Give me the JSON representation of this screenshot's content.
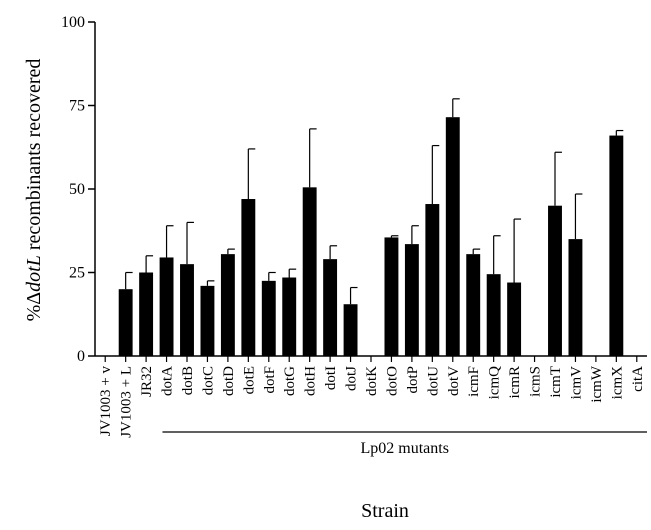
{
  "chart_data": {
    "type": "bar",
    "ylabel_prefix": "%Δ",
    "ylabel_gene": "dotL",
    "ylabel_suffix": " recombinants recovered",
    "xlabel": "Strain",
    "ylim": [
      0,
      100
    ],
    "yticks": [
      0,
      25,
      50,
      75,
      100
    ],
    "categories": [
      "JV1003 + v",
      "JV1003 + L",
      "JR32",
      "dotA",
      "dotB",
      "dotC",
      "dotD",
      "dotE",
      "dotF",
      "dotG",
      "dotH",
      "dotI",
      "dotJ",
      "dotK",
      "dotO",
      "dotP",
      "dotU",
      "dotV",
      "icmF",
      "icmQ",
      "icmR",
      "icmS",
      "icmT",
      "icmV",
      "icmW",
      "icmX",
      "citA"
    ],
    "values": [
      0,
      20,
      25,
      29.5,
      27.5,
      21,
      30.5,
      47,
      22.5,
      23.5,
      50.5,
      29,
      15.5,
      0,
      35.5,
      33.5,
      45.5,
      71.5,
      30.5,
      24.5,
      22,
      0,
      45,
      35,
      0,
      66,
      0
    ],
    "errors": [
      0,
      5,
      5,
      9.5,
      12.5,
      1.5,
      1.5,
      15,
      2.5,
      2.5,
      17.5,
      4,
      5,
      0,
      0.5,
      5.5,
      17.5,
      5.5,
      1.5,
      11.5,
      19,
      0,
      16,
      13.5,
      0,
      1.5,
      0
    ],
    "bar_color": "#000000",
    "group_label": "Lp02 mutants",
    "group_range": [
      "dotA",
      "citA"
    ]
  }
}
